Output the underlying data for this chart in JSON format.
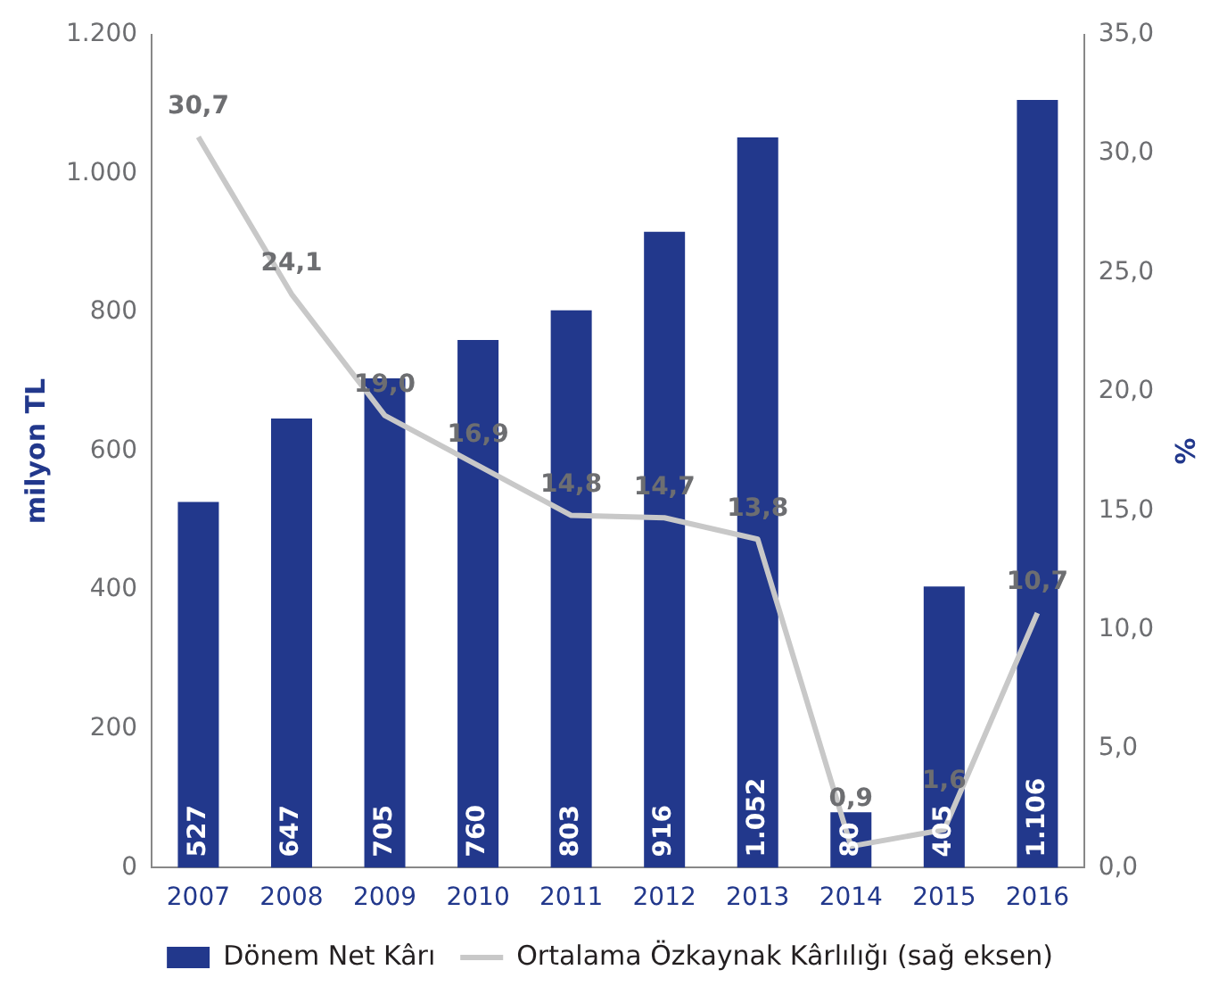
{
  "chart_data": {
    "type": "bar",
    "categories": [
      "2007",
      "2008",
      "2009",
      "2010",
      "2011",
      "2012",
      "2013",
      "2014",
      "2015",
      "2016"
    ],
    "ylabel": "milyon TL",
    "y2label": "%",
    "ylim": [
      0,
      1200
    ],
    "yticks": [
      0,
      200,
      400,
      600,
      800,
      {
        "value": 1000,
        "label": "1.000"
      },
      {
        "value": 1200,
        "label": "1.200"
      }
    ],
    "y2lim": [
      0,
      35
    ],
    "y2ticks": [
      {
        "value": 0,
        "label": "0,0"
      },
      {
        "value": 5,
        "label": "5,0"
      },
      {
        "value": 10,
        "label": "10,0"
      },
      {
        "value": 15,
        "label": "15,0"
      },
      {
        "value": 20,
        "label": "20,0"
      },
      {
        "value": 25,
        "label": "25,0"
      },
      {
        "value": 30,
        "label": "30,0"
      },
      {
        "value": 35,
        "label": "35,0"
      }
    ],
    "series": [
      {
        "name": "Dönem Net Kârı",
        "color": "#22388c",
        "values": [
          527,
          647,
          705,
          760,
          803,
          916,
          1052,
          80,
          405,
          1106
        ],
        "value_labels": [
          "527",
          "647",
          "705",
          "760",
          "803",
          "916",
          "1.052",
          "80",
          "405",
          "1.106"
        ]
      },
      {
        "name": "Ortalama Özkaynak Kârlılığı (sağ eksen)",
        "type": "line",
        "axis": "y2",
        "color": "#c8c8c8",
        "values": [
          30.7,
          24.1,
          19.0,
          16.9,
          14.8,
          14.7,
          13.8,
          0.9,
          1.6,
          10.7
        ],
        "value_labels": [
          "30,7",
          "24,1",
          "19,0",
          "16,9",
          "14,8",
          "14,7",
          "13,8",
          "0,9",
          "1,6",
          "10,7"
        ]
      }
    ],
    "legend": "bottom",
    "grid": false,
    "marker": "none",
    "line_style": "solid"
  }
}
